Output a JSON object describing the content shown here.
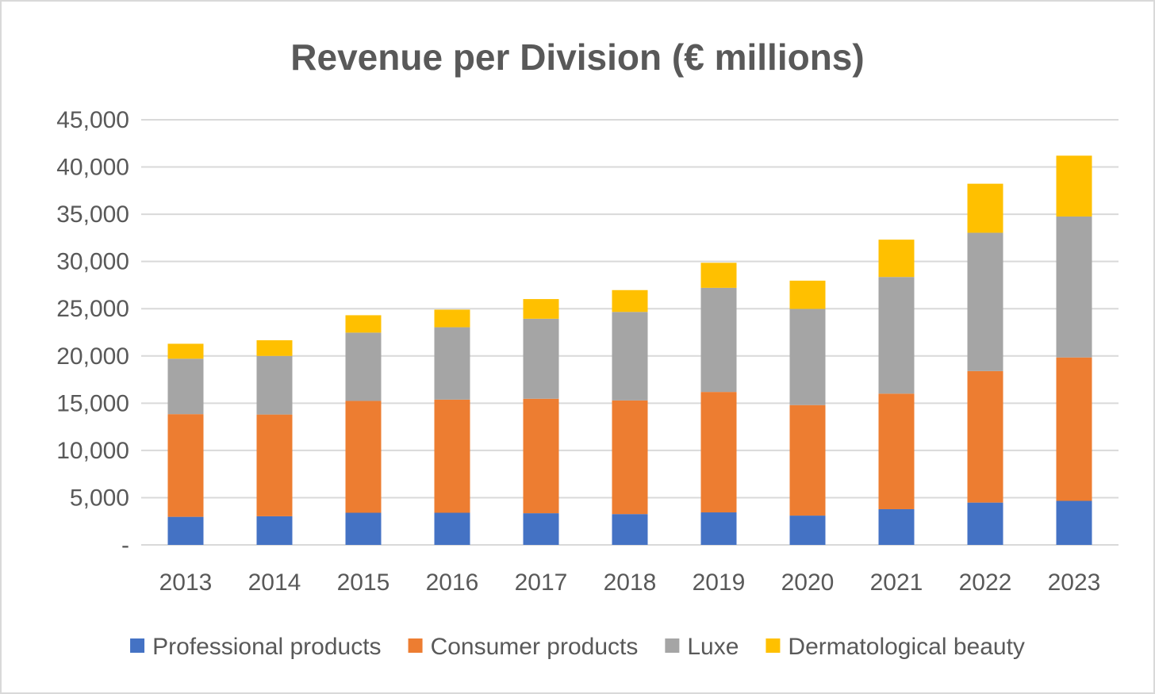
{
  "chart_data": {
    "type": "bar",
    "stacked": true,
    "title": "Revenue per Division (€ millions)",
    "xlabel": "",
    "ylabel": "",
    "ylim": [
      0,
      45000
    ],
    "y_ticks": [
      {
        "value": 0,
        "label": "-"
      },
      {
        "value": 5000,
        "label": "5,000"
      },
      {
        "value": 10000,
        "label": "10,000"
      },
      {
        "value": 15000,
        "label": "15,000"
      },
      {
        "value": 20000,
        "label": "20,000"
      },
      {
        "value": 25000,
        "label": "25,000"
      },
      {
        "value": 30000,
        "label": "30,000"
      },
      {
        "value": 35000,
        "label": "35,000"
      },
      {
        "value": 40000,
        "label": "40,000"
      },
      {
        "value": 45000,
        "label": "45,000"
      }
    ],
    "grid": true,
    "legend_position": "bottom",
    "categories": [
      "2013",
      "2014",
      "2015",
      "2016",
      "2017",
      "2018",
      "2019",
      "2020",
      "2021",
      "2022",
      "2023"
    ],
    "series": [
      {
        "name": "Professional products",
        "color": "#4472C4",
        "values": [
          2970,
          3030,
          3400,
          3400,
          3350,
          3260,
          3440,
          3100,
          3780,
          4480,
          4660
        ]
      },
      {
        "name": "Consumer products",
        "color": "#ED7D31",
        "values": [
          10870,
          10770,
          11840,
          11980,
          12120,
          12030,
          12750,
          11700,
          12230,
          13920,
          15180
        ]
      },
      {
        "name": "Luxe",
        "color": "#A5A5A5",
        "values": [
          5870,
          6200,
          7230,
          7660,
          8470,
          9370,
          11020,
          10180,
          12350,
          14640,
          14920
        ]
      },
      {
        "name": "Dermatological beauty",
        "color": "#FFC000",
        "values": [
          1580,
          1660,
          1840,
          1860,
          2080,
          2310,
          2650,
          2990,
          3950,
          5190,
          6440
        ]
      }
    ]
  }
}
